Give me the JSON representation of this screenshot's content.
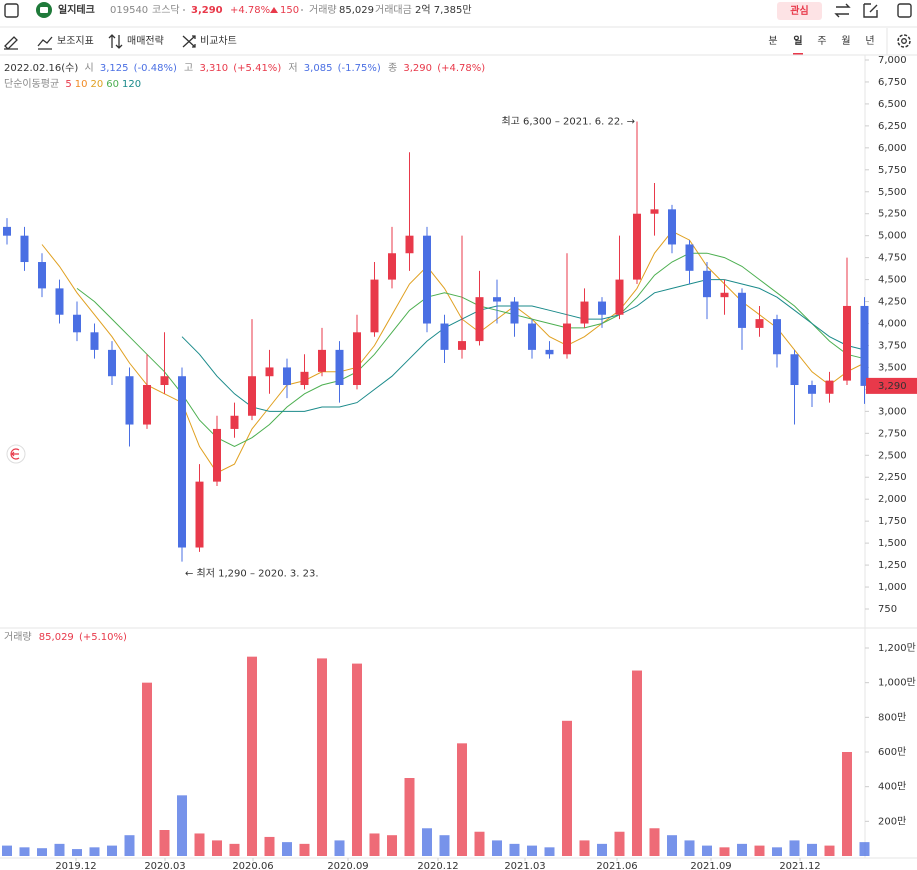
{
  "header": {
    "name": "일지테크",
    "code": "019540",
    "market": "코스닥",
    "price": "3,290",
    "change_pct": "+4.78%",
    "change": "150",
    "volume_label": "거래량",
    "volume": "85,029",
    "amount_label": "거래대금",
    "amount": "2억 7,385만",
    "watch": "관심"
  },
  "toolbar": {
    "indicators": "보조지표",
    "strategy": "매매전략",
    "compare": "비교차트",
    "tabs": [
      "분",
      "일",
      "주",
      "월",
      "년"
    ]
  },
  "chart_data": {
    "type": "candlestick",
    "info": {
      "date": "2022.02.16(수)",
      "open_label": "시",
      "open": "3,125",
      "open_pct": "(-0.48%)",
      "high_label": "고",
      "high": "3,310",
      "high_pct": "(+5.41%)",
      "low_label": "저",
      "low": "3,085",
      "low_pct": "(-1.75%)",
      "close_label": "종",
      "close": "3,290",
      "close_pct": "(+4.78%)"
    },
    "ma_label": "단순이동평균",
    "moving_averages": [
      {
        "name": "5",
        "color": "#e8394a"
      },
      {
        "name": "10",
        "color": "#f08a24"
      },
      {
        "name": "20",
        "color": "#e0a020",
        "values": [
          null,
          null,
          4900,
          4650,
          4350,
          4100,
          3850,
          3550,
          3300,
          3200,
          3100,
          2600,
          2300,
          2400,
          2800,
          3050,
          3300,
          3350,
          3450,
          3450,
          3500,
          3750,
          4100,
          4450,
          4650,
          4400,
          4050,
          3900,
          4050,
          4200,
          4050,
          3850,
          3750,
          3850,
          4000,
          4150,
          4400,
          4800,
          5050,
          4950,
          4650,
          4450,
          4250,
          4100,
          3950,
          3700,
          3450,
          3300,
          3450,
          3550
        ]
      },
      {
        "name": "60",
        "color": "#4caf50",
        "values": [
          null,
          null,
          null,
          null,
          4400,
          4250,
          4050,
          3850,
          3650,
          3450,
          3200,
          2900,
          2700,
          2600,
          2700,
          2850,
          3050,
          3200,
          3300,
          3350,
          3450,
          3650,
          3900,
          4150,
          4300,
          4350,
          4300,
          4200,
          4150,
          4100,
          4050,
          4000,
          3950,
          3950,
          4000,
          4100,
          4300,
          4550,
          4700,
          4800,
          4800,
          4750,
          4650,
          4500,
          4350,
          4200,
          4000,
          3800,
          3650,
          3600
        ]
      },
      {
        "name": "120",
        "color": "#1a8a8a",
        "values": [
          null,
          null,
          null,
          null,
          null,
          null,
          null,
          null,
          null,
          null,
          3850,
          3650,
          3400,
          3200,
          3050,
          3000,
          3000,
          3000,
          3050,
          3050,
          3100,
          3250,
          3400,
          3600,
          3800,
          3950,
          4050,
          4150,
          4200,
          4200,
          4200,
          4150,
          4100,
          4050,
          4050,
          4100,
          4200,
          4350,
          4400,
          4450,
          4500,
          4500,
          4450,
          4400,
          4300,
          4150,
          4000,
          3850,
          3750,
          3700
        ]
      }
    ],
    "candles": {
      "open": [
        5100,
        5000,
        4700,
        4400,
        4100,
        3900,
        3700,
        3400,
        2850,
        3300,
        3400,
        1450,
        2200,
        2800,
        2950,
        3400,
        3500,
        3300,
        3450,
        3700,
        3300,
        3900,
        4500,
        4800,
        5000,
        4000,
        3700,
        3800,
        4300,
        4250,
        4000,
        3700,
        3650,
        4000,
        4250,
        4100,
        4500,
        5250,
        5300,
        4900,
        4600,
        4300,
        4350,
        3950,
        4050,
        3650,
        3300,
        3200,
        3350,
        4200
      ],
      "high": [
        5200,
        5100,
        4800,
        4500,
        4250,
        4000,
        3800,
        3500,
        3650,
        3900,
        3500,
        2400,
        2950,
        3100,
        4050,
        3700,
        3600,
        3650,
        3950,
        3800,
        4100,
        4700,
        5100,
        5950,
        5100,
        4100,
        5000,
        4600,
        4500,
        4300,
        4050,
        3800,
        4800,
        4400,
        4300,
        5000,
        6300,
        5600,
        5350,
        4950,
        4700,
        4500,
        4400,
        4200,
        4100,
        3700,
        3350,
        3450,
        4750,
        4300
      ],
      "low": [
        4900,
        4600,
        4300,
        4000,
        3800,
        3600,
        3300,
        2600,
        2800,
        3200,
        1290,
        1400,
        2150,
        2700,
        2900,
        3200,
        3150,
        3250,
        3400,
        3100,
        3250,
        3850,
        4400,
        4600,
        3900,
        3550,
        3600,
        3750,
        4000,
        3850,
        3600,
        3600,
        3600,
        3950,
        3950,
        4050,
        4450,
        5000,
        4800,
        4450,
        4050,
        4100,
        3700,
        3850,
        3500,
        2850,
        3050,
        3100,
        3300,
        3085
      ],
      "close": [
        5000,
        4700,
        4400,
        4100,
        3900,
        3700,
        3400,
        2850,
        3300,
        3400,
        1450,
        2200,
        2800,
        2950,
        3400,
        3500,
        3300,
        3450,
        3700,
        3300,
        3900,
        4500,
        4800,
        5000,
        4000,
        3700,
        3800,
        4300,
        4250,
        4000,
        3700,
        3650,
        4000,
        4250,
        4100,
        4500,
        5250,
        5300,
        4900,
        4600,
        4300,
        4350,
        3950,
        4050,
        3650,
        3300,
        3200,
        3350,
        4200,
        3290
      ]
    },
    "up_color": "#e8394a",
    "down_color": "#4a6fe3",
    "ylim": [
      750,
      7000
    ],
    "yticks": [
      750,
      {
        "value": 1000,
        "label": "1,000"
      },
      {
        "value": 1250,
        "label": "1,250"
      },
      {
        "value": 1500,
        "label": "1,500"
      },
      {
        "value": 1750,
        "label": "1,750"
      },
      {
        "value": 2000,
        "label": "2,000"
      },
      {
        "value": 2250,
        "label": "2,250"
      },
      {
        "value": 2500,
        "label": "2,500"
      },
      {
        "value": 2750,
        "label": "2,750"
      },
      {
        "value": 3000,
        "label": "3,000"
      },
      {
        "value": 3250,
        "label": "3,250"
      },
      {
        "value": 3500,
        "label": "3,500"
      },
      {
        "value": 3750,
        "label": "3,750"
      },
      {
        "value": 4000,
        "label": "4,000"
      },
      {
        "value": 4250,
        "label": "4,250"
      },
      {
        "value": 4500,
        "label": "4,500"
      },
      {
        "value": 4750,
        "label": "4,750"
      },
      {
        "value": 5000,
        "label": "5,000"
      },
      {
        "value": 5250,
        "label": "5,250"
      },
      {
        "value": 5500,
        "label": "5,500"
      },
      {
        "value": 5750,
        "label": "5,750"
      },
      {
        "value": 6000,
        "label": "6,000"
      },
      {
        "value": 6250,
        "label": "6,250"
      },
      {
        "value": 6500,
        "label": "6,500"
      },
      {
        "value": 6750,
        "label": "6,750"
      },
      {
        "value": 7000,
        "label": "7,000"
      }
    ],
    "last_price": {
      "value": 3290,
      "label": "3,290"
    },
    "high_note": "최고 6,300 – 2021. 6. 22. →",
    "low_note": "← 최저 1,290 – 2020. 3. 23.",
    "volume": {
      "label": "거래량",
      "last": "85,029",
      "last_pct": "(+5.10%)",
      "values": [
        60,
        50,
        45,
        70,
        40,
        50,
        60,
        120,
        1000,
        150,
        350,
        130,
        90,
        70,
        1150,
        110,
        80,
        70,
        1140,
        90,
        1110,
        130,
        120,
        450,
        160,
        120,
        650,
        140,
        90,
        70,
        60,
        50,
        780,
        90,
        70,
        140,
        1070,
        160,
        120,
        90,
        60,
        50,
        70,
        60,
        50,
        90,
        70,
        60,
        600,
        80
      ],
      "ylim": [
        0,
        1200
      ],
      "yticks": [
        {
          "value": 200,
          "label": "200만"
        },
        {
          "value": 400,
          "label": "400만"
        },
        {
          "value": 600,
          "label": "600만"
        },
        {
          "value": 800,
          "label": "800만"
        },
        {
          "value": 1000,
          "label": "1,000만"
        },
        {
          "value": 1200,
          "label": "1,200만"
        }
      ]
    },
    "x_labels": [
      "2019.12",
      "2020.03",
      "2020.06",
      "2020.09",
      "2020.12",
      "2021.03",
      "2021.06",
      "2021.09",
      "2021.12"
    ]
  }
}
